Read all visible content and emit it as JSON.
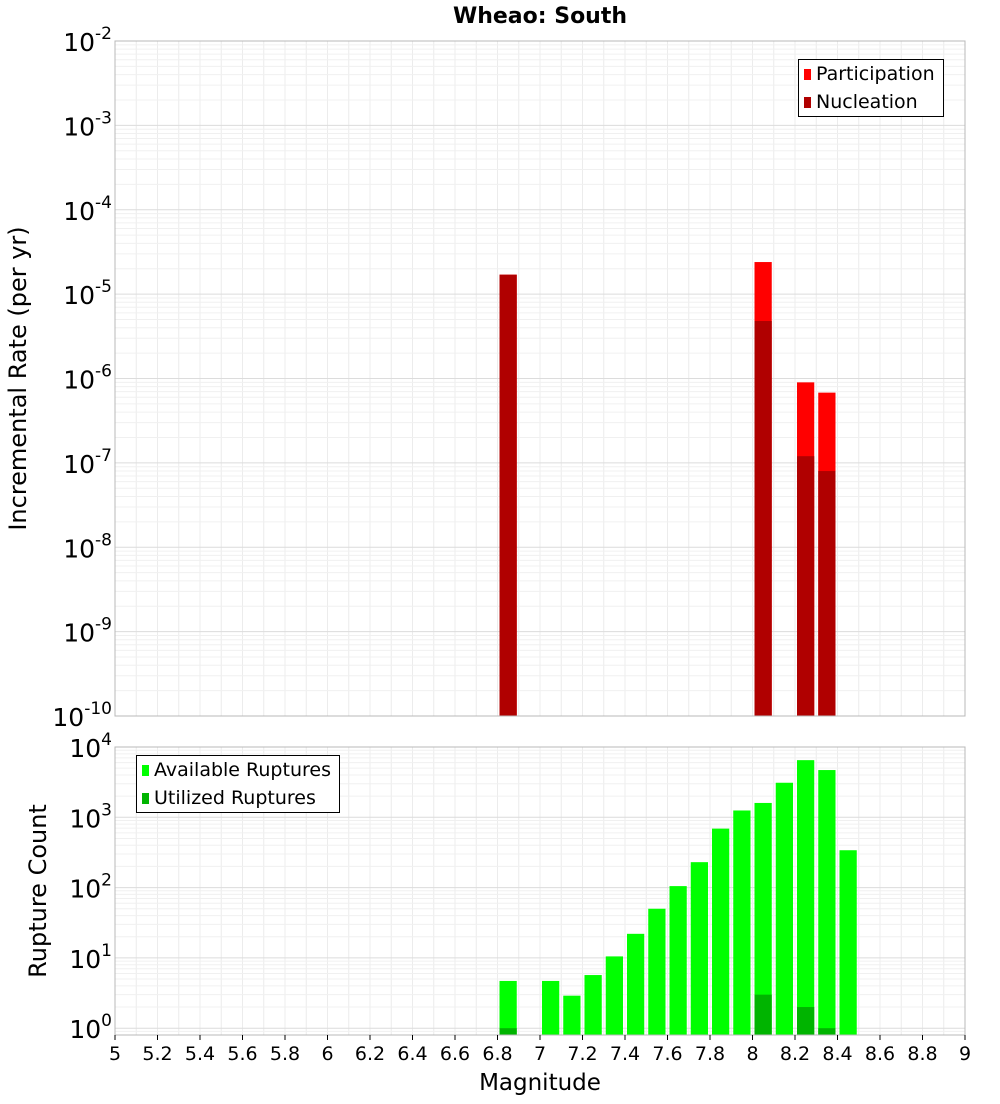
{
  "chart_data": [
    {
      "type": "bar",
      "title": "Wheao: South",
      "ylabel": "Incremental Rate (per yr)",
      "xlabel": "",
      "xlim": [
        5,
        9
      ],
      "ylog": true,
      "ylim": [
        1e-10,
        0.01
      ],
      "y_tick_exponents": [
        -10,
        -9,
        -8,
        -7,
        -6,
        -5,
        -4,
        -3,
        -2
      ],
      "grid": true,
      "legend_position": "top-right",
      "bin_width": 0.1,
      "series": [
        {
          "name": "Participation",
          "color": "#ff0000",
          "x": [
            6.85,
            8.05,
            8.25,
            8.35
          ],
          "values": [
            1.7e-05,
            2.4e-05,
            9e-07,
            6.8e-07
          ]
        },
        {
          "name": "Nucleation",
          "color": "#b00000",
          "x": [
            6.85,
            8.05,
            8.25,
            8.35
          ],
          "values": [
            1.7e-05,
            4.8e-06,
            1.2e-07,
            8e-08
          ]
        }
      ]
    },
    {
      "type": "bar",
      "title": "",
      "ylabel": "Rupture Count",
      "xlabel": "Magnitude",
      "xlim": [
        5,
        9
      ],
      "x_ticks": [
        "5",
        "5.2",
        "5.4",
        "5.6",
        "5.8",
        "6",
        "6.2",
        "6.4",
        "6.6",
        "6.8",
        "7",
        "7.2",
        "7.4",
        "7.6",
        "7.8",
        "8",
        "8.2",
        "8.4",
        "8.6",
        "8.8",
        "9"
      ],
      "ylog": true,
      "ylim": [
        0.8,
        10000
      ],
      "y_tick_exponents": [
        0,
        1,
        2,
        3,
        4
      ],
      "grid": true,
      "legend_position": "top-left",
      "bin_width": 0.1,
      "series": [
        {
          "name": "Available Ruptures",
          "color": "#00ff00",
          "x": [
            6.85,
            7.05,
            7.15,
            7.25,
            7.35,
            7.45,
            7.55,
            7.65,
            7.75,
            7.85,
            7.95,
            8.05,
            8.15,
            8.25,
            8.35,
            8.45
          ],
          "values": [
            4.7,
            4.7,
            2.9,
            5.7,
            10.5,
            22,
            50,
            105,
            230,
            690,
            1250,
            1600,
            3100,
            6500,
            4700,
            340
          ]
        },
        {
          "name": "Utilized Ruptures",
          "color": "#00b400",
          "x": [
            6.85,
            8.05,
            8.25,
            8.35
          ],
          "values": [
            1,
            3,
            2,
            1
          ]
        }
      ]
    }
  ]
}
